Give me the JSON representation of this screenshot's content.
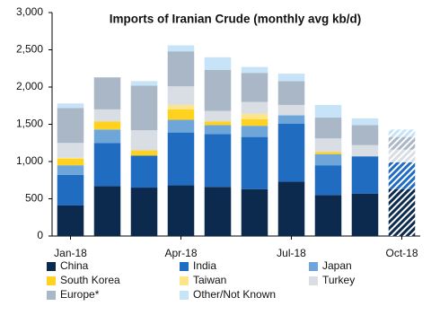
{
  "chart_data": {
    "type": "stacked-bar",
    "title": "Imports of Iranian Crude (monthly avg kb/d)",
    "categories": [
      "Jan-18",
      null,
      null,
      "Apr-18",
      null,
      null,
      "Jul-18",
      null,
      null,
      "Oct-18"
    ],
    "series": [
      {
        "name": "China",
        "color": "#0c2a4e",
        "values": [
          410,
          670,
          650,
          680,
          660,
          630,
          730,
          550,
          570,
          630
        ]
      },
      {
        "name": "India",
        "color": "#1f6cc0",
        "values": [
          410,
          580,
          430,
          710,
          710,
          700,
          780,
          400,
          500,
          360
        ]
      },
      {
        "name": "Japan",
        "color": "#6fa6da",
        "values": [
          130,
          180,
          0,
          170,
          120,
          150,
          110,
          150,
          0,
          0
        ]
      },
      {
        "name": "South Korea",
        "color": "#ffd21f",
        "values": [
          90,
          110,
          70,
          140,
          50,
          90,
          0,
          30,
          0,
          0
        ]
      },
      {
        "name": "Taiwan",
        "color": "#ffe58a",
        "values": [
          10,
          0,
          0,
          60,
          0,
          70,
          0,
          0,
          0,
          0
        ]
      },
      {
        "name": "Turkey",
        "color": "#d9dee5",
        "values": [
          200,
          160,
          270,
          250,
          140,
          160,
          140,
          180,
          150,
          170
        ]
      },
      {
        "name": "Europe*",
        "color": "#a9b7c7",
        "values": [
          470,
          430,
          600,
          470,
          550,
          390,
          320,
          280,
          270,
          170
        ]
      },
      {
        "name": "Other/Not Known",
        "color": "#c6e3f7",
        "values": [
          60,
          0,
          60,
          80,
          170,
          80,
          100,
          170,
          90,
          100
        ]
      }
    ],
    "ylim": [
      0,
      3000
    ],
    "yticks": [
      0,
      500,
      {
        "value": 1000,
        "label": "1,000"
      },
      {
        "value": 1500,
        "label": "1,500"
      },
      {
        "value": 2000,
        "label": "2,000"
      },
      {
        "value": 2500,
        "label": "2,500"
      },
      {
        "value": 3000,
        "label": "3,000"
      }
    ],
    "hatch_last": true,
    "legend": "bottom"
  }
}
